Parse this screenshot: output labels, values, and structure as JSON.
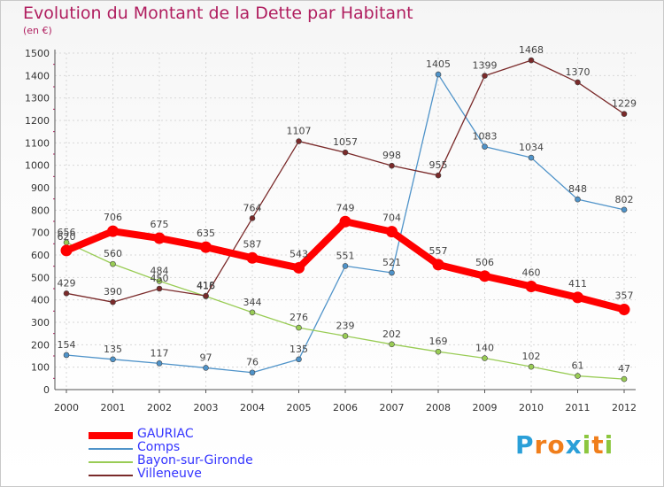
{
  "title": "Evolution du Montant de la Dette par Habitant",
  "subtitle": "(en €)",
  "logo": {
    "letters": [
      "P",
      "r",
      "o",
      "x",
      "i",
      "t",
      "i"
    ],
    "colors": [
      "#2a9fd8",
      "#f07e1b",
      "#f07e1b",
      "#2a9fd8",
      "#8cc63f",
      "#f07e1b",
      "#8cc63f"
    ]
  },
  "chart_data": {
    "type": "line",
    "title": "Evolution du Montant de la Dette par Habitant",
    "subtitle": "(en €)",
    "xlabel": "",
    "ylabel": "",
    "x": [
      "2000",
      "2001",
      "2002",
      "2003",
      "2004",
      "2005",
      "2006",
      "2007",
      "2008",
      "2009",
      "2010",
      "2011",
      "2012"
    ],
    "ylim": [
      0,
      1500
    ],
    "yticks": [
      0,
      100,
      200,
      300,
      400,
      500,
      600,
      700,
      800,
      900,
      1000,
      1100,
      1200,
      1300,
      1400,
      1500
    ],
    "grid": true,
    "legend_position": "bottom-left",
    "series": [
      {
        "name": "GAURIAC",
        "color": "#ff0000",
        "values": [
          620,
          706,
          675,
          635,
          587,
          543,
          749,
          704,
          557,
          506,
          460,
          411,
          357
        ]
      },
      {
        "name": "Comps",
        "color": "#4f93c9",
        "values": [
          154,
          135,
          117,
          97,
          76,
          135,
          551,
          521,
          1405,
          1083,
          1034,
          848,
          802
        ]
      },
      {
        "name": "Bayon-sur-Gironde",
        "color": "#99cc55",
        "values": [
          656,
          560,
          484,
          416,
          344,
          276,
          239,
          202,
          169,
          140,
          102,
          61,
          47
        ]
      },
      {
        "name": "Villeneuve",
        "color": "#7a2a2a",
        "values": [
          429,
          390,
          450,
          418,
          764,
          1107,
          1057,
          998,
          955,
          1399,
          1468,
          1370,
          1229
        ]
      }
    ]
  }
}
